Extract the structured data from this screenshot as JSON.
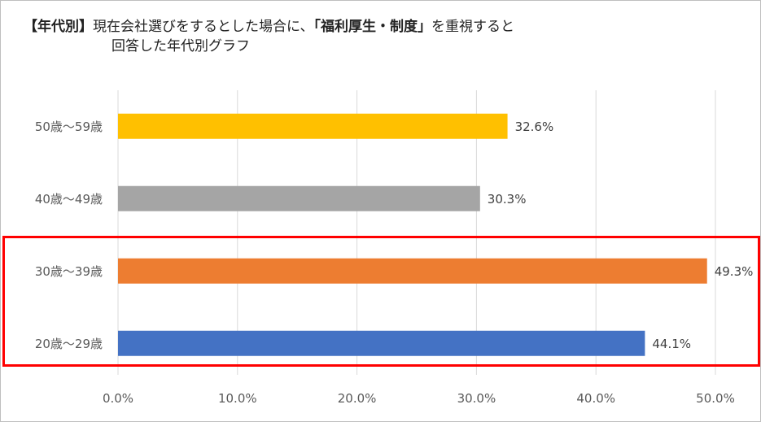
{
  "title": {
    "prefix": "【年代別】",
    "part1": "現在会社選びをするとした場合に、",
    "bold": "「福利厚生・制度」",
    "part2": "を重視すると",
    "line2": "回答した年代別グラフ"
  },
  "chart_data": {
    "type": "bar",
    "orientation": "horizontal",
    "categories": [
      "50歳〜59歳",
      "40歳〜49歳",
      "30歳〜39歳",
      "20歳〜29歳"
    ],
    "values": [
      32.6,
      30.3,
      49.3,
      44.1
    ],
    "labels": [
      "32.6%",
      "30.3%",
      "49.3%",
      "44.1%"
    ],
    "colors": [
      "#ffc000",
      "#a5a5a5",
      "#ed7d31",
      "#4472c4"
    ],
    "xlim": [
      0,
      50
    ],
    "xticks": [
      "0.0%",
      "10.0%",
      "20.0%",
      "30.0%",
      "40.0%",
      "50.0%"
    ],
    "grid": true,
    "highlight": [
      "30歳〜39歳",
      "20歳〜29歳"
    ],
    "highlight_color": "#ff0000"
  }
}
